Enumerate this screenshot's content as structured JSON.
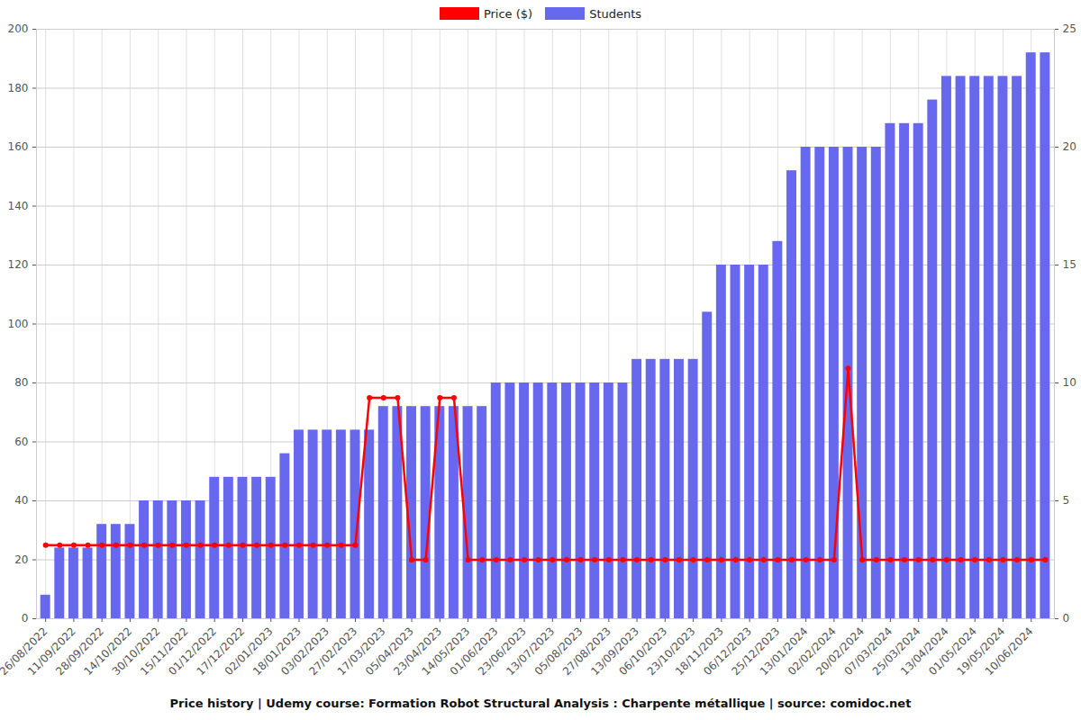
{
  "chart_data": {
    "type": "bar",
    "title": "Price history | Udemy course: Formation Robot Structural Analysis : Charpente métallique | source: comidoc.net",
    "categories": [
      "26/08/2022",
      null,
      "11/09/2022",
      null,
      "28/09/2022",
      null,
      "14/10/2022",
      null,
      "30/10/2022",
      null,
      "15/11/2022",
      null,
      "01/12/2022",
      null,
      "17/12/2022",
      null,
      "02/01/2023",
      null,
      "18/01/2023",
      null,
      "03/02/2023",
      null,
      "27/02/2023",
      null,
      "17/03/2023",
      null,
      "05/04/2023",
      null,
      "23/04/2023",
      null,
      "14/05/2023",
      null,
      "01/06/2023",
      null,
      "23/06/2023",
      null,
      "13/07/2023",
      null,
      "05/08/2023",
      null,
      "27/08/2023",
      null,
      "13/09/2023",
      null,
      "06/10/2023",
      null,
      "23/10/2023",
      null,
      "18/11/2023",
      null,
      "06/12/2023",
      null,
      "25/12/2023",
      null,
      "13/01/2024",
      null,
      "02/02/2024",
      null,
      "20/02/2024",
      null,
      "07/03/2024",
      null,
      "25/03/2024",
      null,
      "13/04/2024",
      null,
      "01/05/2024",
      null,
      "19/05/2024",
      null,
      "10/06/2024",
      null
    ],
    "series": [
      {
        "name": "Price ($)",
        "type": "line",
        "color": "#ff0000",
        "marker": "circle",
        "values": [
          25,
          25,
          25,
          25,
          25,
          25,
          25,
          25,
          25,
          25,
          25,
          25,
          25,
          25,
          25,
          25,
          25,
          25,
          25,
          25,
          25,
          25,
          25,
          75,
          75,
          75,
          20,
          20,
          75,
          75,
          20,
          20,
          20,
          20,
          20,
          20,
          20,
          20,
          20,
          20,
          20,
          20,
          20,
          20,
          20,
          20,
          20,
          20,
          20,
          20,
          20,
          20,
          20,
          20,
          20,
          20,
          20,
          85,
          20,
          20,
          20,
          20,
          20,
          20,
          20,
          20,
          20,
          20,
          20,
          20,
          20,
          20
        ]
      },
      {
        "name": "Students",
        "type": "bar",
        "axis": "y2",
        "color": "#6868ee",
        "values": [
          1,
          3,
          3,
          3,
          4,
          4,
          4,
          5,
          5,
          5,
          5,
          5,
          6,
          6,
          6,
          6,
          6,
          7,
          8,
          8,
          8,
          8,
          8,
          8,
          9,
          9,
          9,
          9,
          9,
          9,
          9,
          9,
          10,
          10,
          10,
          10,
          10,
          10,
          10,
          10,
          10,
          10,
          11,
          11,
          11,
          11,
          11,
          13,
          15,
          15,
          15,
          15,
          16,
          19,
          20,
          20,
          20,
          20,
          20,
          20,
          21,
          21,
          21,
          22,
          23,
          23,
          23,
          23,
          23,
          23,
          24,
          24
        ]
      }
    ],
    "ylim": [
      0,
      200
    ],
    "yticks": [
      0,
      20,
      40,
      60,
      80,
      100,
      120,
      140,
      160,
      180,
      200
    ],
    "y2lim": [
      0,
      25
    ],
    "y2ticks": [
      0,
      5,
      10,
      15,
      20,
      25
    ],
    "grid": true,
    "legend": "top"
  }
}
